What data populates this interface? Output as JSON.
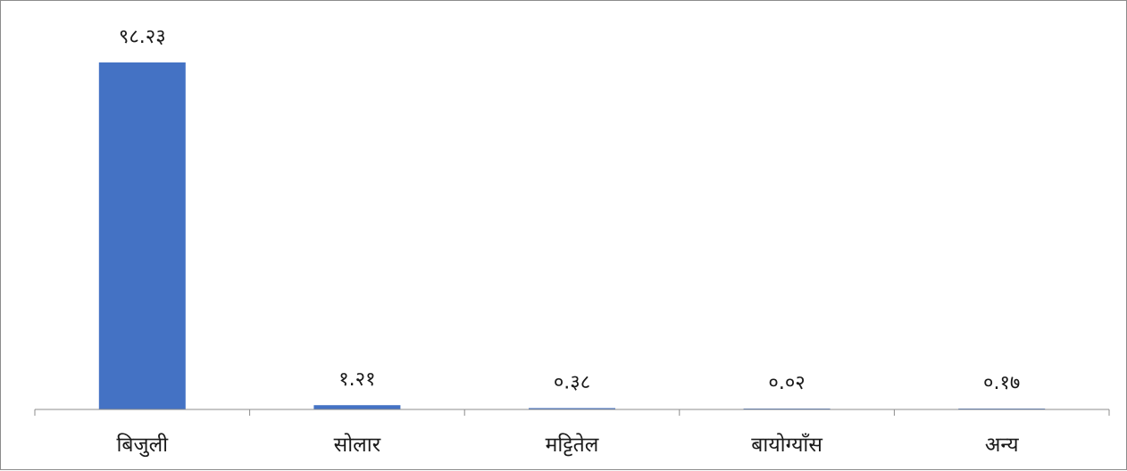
{
  "chart_data": {
    "type": "bar",
    "categories": [
      "बिजुली",
      "सोलार",
      "मट्टितेल",
      "बायोग्याँस",
      "अन्य"
    ],
    "values": [
      98.23,
      1.21,
      0.38,
      0.02,
      0.17
    ],
    "value_labels": [
      "९८.२३",
      "१.२१",
      "०.३८",
      "०.०२",
      "०.१७"
    ],
    "title": "",
    "xlabel": "",
    "ylabel": "",
    "ylim": [
      0,
      100
    ],
    "grid": false,
    "legend": "none",
    "bar_color": "#4472C4"
  }
}
